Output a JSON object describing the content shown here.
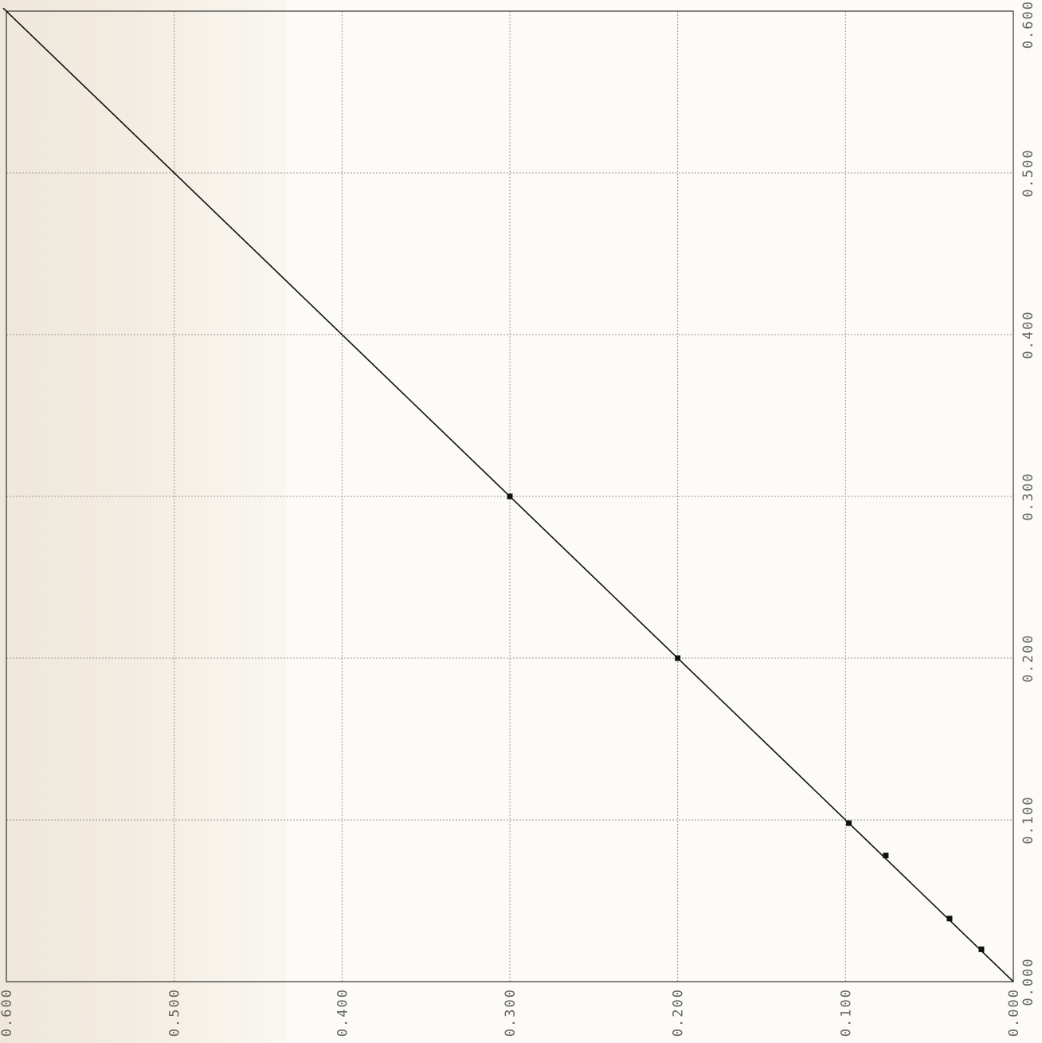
{
  "chart_data": {
    "type": "scatter",
    "title": "",
    "xlabel": "",
    "ylabel": "",
    "xlim": [
      0.0,
      0.6
    ],
    "ylim": [
      0.0,
      0.6
    ],
    "x_reversed": true,
    "grid": true,
    "x_tick_labels": [
      "0.600",
      "0.500",
      "0.400",
      "0.300",
      "0.200",
      "0.100",
      "0.000"
    ],
    "y_tick_labels": [
      "0.600",
      "0.500",
      "0.400",
      "0.300",
      "0.200",
      "0.100",
      "0.000"
    ],
    "x_ticks": [
      0.6,
      0.5,
      0.4,
      0.3,
      0.2,
      0.1,
      0.0
    ],
    "y_ticks": [
      0.6,
      0.5,
      0.4,
      0.3,
      0.2,
      0.1,
      0.0
    ],
    "series": [
      {
        "points": [
          {
            "x": 0.3,
            "y": 0.3
          },
          {
            "x": 0.2,
            "y": 0.2
          },
          {
            "x": 0.098,
            "y": 0.098
          },
          {
            "x": 0.076,
            "y": 0.078
          },
          {
            "x": 0.038,
            "y": 0.039
          },
          {
            "x": 0.019,
            "y": 0.02
          }
        ]
      }
    ],
    "fit_line": {
      "x": [
        0.6,
        0.0
      ],
      "y": [
        0.6,
        0.0
      ]
    },
    "colors": {
      "marks": "#111111",
      "grid": "#9a9a9a",
      "labels": "#666666"
    }
  }
}
